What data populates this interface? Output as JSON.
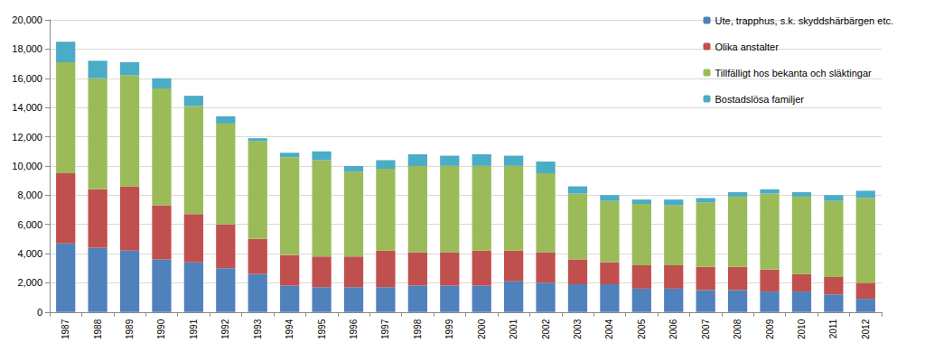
{
  "chart_data": {
    "type": "bar",
    "stacked": true,
    "grid": true,
    "legend": "upper right",
    "categories": [
      "1987",
      "1988",
      "1989",
      "1990",
      "1991",
      "1992",
      "1993",
      "1994",
      "1995",
      "1996",
      "1997",
      "1998",
      "1999",
      "2000",
      "2001",
      "2002",
      "2003",
      "2004",
      "2005",
      "2006",
      "2007",
      "2008",
      "2009",
      "2010",
      "2011",
      "2012"
    ],
    "ylim": [
      0,
      20000
    ],
    "yticks": [
      0,
      2000,
      4000,
      6000,
      8000,
      10000,
      12000,
      14000,
      16000,
      18000,
      20000
    ],
    "series": [
      {
        "name": "Ute, trapphus, s.k. skyddshärbärgen etc.",
        "color": "#4F81BD",
        "values": [
          4700,
          4400,
          4200,
          3600,
          3400,
          3000,
          2600,
          1800,
          1700,
          1700,
          1700,
          1800,
          1800,
          1800,
          2100,
          2000,
          1900,
          1900,
          1600,
          1600,
          1500,
          1500,
          1400,
          1400,
          1200,
          900
        ]
      },
      {
        "name": "Olika anstalter",
        "color": "#C0504D",
        "values": [
          4800,
          4000,
          4400,
          3700,
          3300,
          3000,
          2400,
          2100,
          2100,
          2100,
          2500,
          2300,
          2300,
          2400,
          2100,
          2100,
          1700,
          1500,
          1600,
          1600,
          1600,
          1600,
          1500,
          1200,
          1200,
          1100
        ]
      },
      {
        "name": "Tillfälligt hos bekanta och släktingar",
        "color": "#9BBB59",
        "values": [
          7600,
          7600,
          7600,
          8000,
          7400,
          6900,
          6700,
          6700,
          6600,
          5800,
          5600,
          5900,
          5900,
          5800,
          5800,
          5400,
          4500,
          4200,
          4200,
          4100,
          4400,
          4800,
          5200,
          5300,
          5200,
          5800
        ]
      },
      {
        "name": "Bostadslösa familjer",
        "color": "#4BACC6",
        "values": [
          1400,
          1200,
          900,
          700,
          700,
          500,
          200,
          300,
          600,
          400,
          600,
          800,
          700,
          800,
          700,
          800,
          500,
          400,
          300,
          400,
          300,
          300,
          300,
          300,
          400,
          500
        ]
      }
    ]
  }
}
